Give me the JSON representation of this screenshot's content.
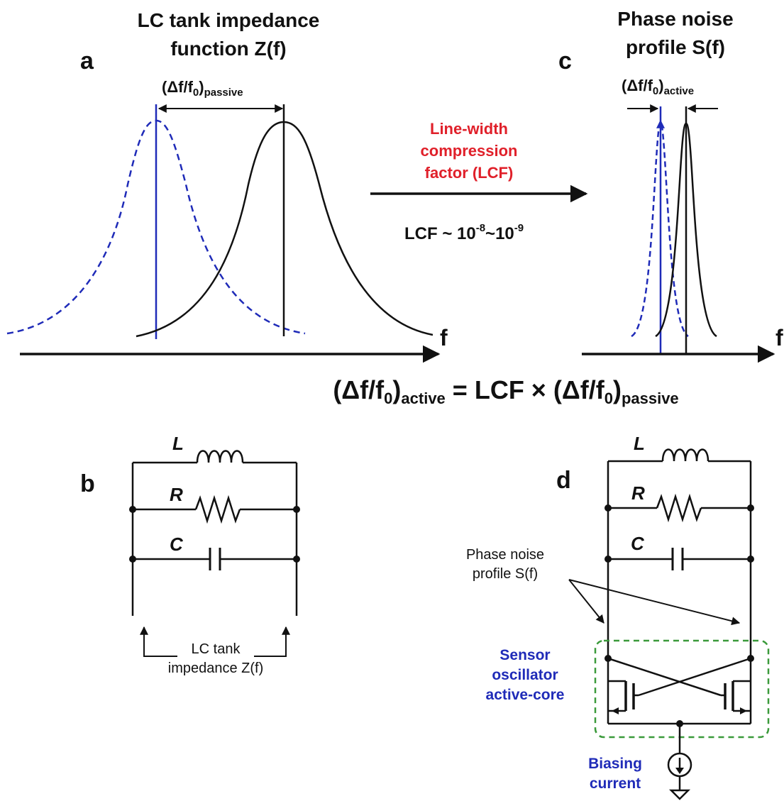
{
  "panels": {
    "a": {
      "letter": "a",
      "title_line1": "LC tank impedance",
      "title_line2": "function Z(f)",
      "delta_base": "(Δf/f",
      "delta_sub0": "0",
      "delta_close": ")",
      "delta_sub": "passive",
      "axis_label": "f"
    },
    "b": {
      "letter": "b",
      "label_L": "L",
      "label_R": "R",
      "label_C": "C",
      "caption_line1": "LC tank",
      "caption_line2": "impedance Z(f)"
    },
    "c": {
      "letter": "c",
      "title_line1": "Phase noise",
      "title_line2": "profile S(f)",
      "delta_base": "(Δf/f",
      "delta_sub0": "0",
      "delta_close": ")",
      "delta_sub": "active",
      "axis_label": "f"
    },
    "d": {
      "letter": "d",
      "label_L": "L",
      "label_R": "R",
      "label_C": "C",
      "phase_line1": "Phase noise",
      "phase_line2": "profile S(f)",
      "sensor_line1": "Sensor",
      "sensor_line2": "oscillator",
      "sensor_line3": "active-core",
      "bias_line1": "Biasing",
      "bias_line2": "current"
    }
  },
  "arrow": {
    "line1": "Line-width",
    "line2": "compression",
    "line3": "factor (LCF)",
    "lcf_base": "LCF ~ 10",
    "lcf_exp1": "-8",
    "lcf_mid": "~10",
    "lcf_exp2": "-9"
  },
  "equation": {
    "open1": "(Δf/f",
    "sub0a": "0",
    "close1": ")",
    "sub1": "active",
    "middle": " = LCF × ",
    "open2": "(Δf/f",
    "sub0b": "0",
    "close2": ")",
    "sub2": "passive"
  },
  "colors": {
    "text_red": "#e0202a",
    "text_blue": "#1f2bb8",
    "curve_blue": "#1f2bb8",
    "box_green": "#3a9a3a"
  }
}
